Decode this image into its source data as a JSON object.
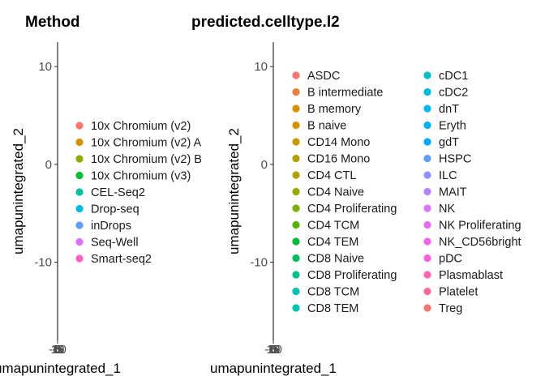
{
  "chart_data": [
    {
      "type": "scatter",
      "title": "Method",
      "xlabel": "umapunintegrated_1",
      "ylabel": "umapunintegrated_2",
      "yticks": [
        "10",
        "0",
        "-10"
      ],
      "yticks_values": [
        10,
        0,
        -10
      ],
      "xticks_overlap": [
        "-10",
        "-5",
        "0",
        "5",
        "10",
        "15"
      ],
      "ylim": [
        -18,
        12.5
      ],
      "legend_position": "right",
      "legend": [
        {
          "name": "10x Chromium (v2)",
          "color": "#F8766D"
        },
        {
          "name": "10x Chromium (v2) A",
          "color": "#D39200"
        },
        {
          "name": "10x Chromium (v2) B",
          "color": "#93AA00"
        },
        {
          "name": "10x Chromium (v3)",
          "color": "#00BA38"
        },
        {
          "name": "CEL-Seq2",
          "color": "#00C19F"
        },
        {
          "name": "Drop-seq",
          "color": "#00B9E3"
        },
        {
          "name": "inDrops",
          "color": "#619CFF"
        },
        {
          "name": "Seq-Well",
          "color": "#DB72FB"
        },
        {
          "name": "Smart-seq2",
          "color": "#FF61C3"
        }
      ]
    },
    {
      "type": "scatter",
      "title": "predicted.celltype.l2",
      "xlabel": "umapunintegrated_1",
      "ylabel": "umapunintegrated_2",
      "yticks": [
        "10",
        "0",
        "-10"
      ],
      "yticks_values": [
        10,
        0,
        -10
      ],
      "xticks_overlap": [
        "-10",
        "-5",
        "0",
        "5",
        "10",
        "15"
      ],
      "ylim": [
        -18,
        12.5
      ],
      "legend_position": "right",
      "legend_columns": 2,
      "legend": [
        {
          "name": "ASDC",
          "color": "#F8766D"
        },
        {
          "name": "B intermediate",
          "color": "#EC8239"
        },
        {
          "name": "B memory",
          "color": "#DB8E00"
        },
        {
          "name": "B naive",
          "color": "#D89000"
        },
        {
          "name": "CD14 Mono",
          "color": "#C79800"
        },
        {
          "name": "CD16 Mono",
          "color": "#B4A000"
        },
        {
          "name": "CD4 CTL",
          "color": "#AEA200"
        },
        {
          "name": "CD4 Naive",
          "color": "#97A900"
        },
        {
          "name": "CD4 Proliferating",
          "color": "#7CAE00"
        },
        {
          "name": "CD4 TCM",
          "color": "#53B400"
        },
        {
          "name": "CD4 TEM",
          "color": "#00BA38"
        },
        {
          "name": "CD8 Naive",
          "color": "#00BD5C"
        },
        {
          "name": "CD8 Proliferating",
          "color": "#00C08B"
        },
        {
          "name": "CD8 TCM",
          "color": "#00C0AF"
        },
        {
          "name": "CD8 TEM",
          "color": "#00C1B2"
        },
        {
          "name": "cDC1",
          "color": "#00BFC4"
        },
        {
          "name": "cDC2",
          "color": "#00BBD8"
        },
        {
          "name": "dnT",
          "color": "#00B6EB"
        },
        {
          "name": "Eryth",
          "color": "#00B0F6"
        },
        {
          "name": "gdT",
          "color": "#00A9FF"
        },
        {
          "name": "HSPC",
          "color": "#619CFF"
        },
        {
          "name": "ILC",
          "color": "#8F91FF"
        },
        {
          "name": "MAIT",
          "color": "#B983FF"
        },
        {
          "name": "NK",
          "color": "#D874FD"
        },
        {
          "name": "NK Proliferating",
          "color": "#E76BF3"
        },
        {
          "name": "NK_CD56bright",
          "color": "#F265E7"
        },
        {
          "name": "pDC",
          "color": "#FA62DB"
        },
        {
          "name": "Plasmablast",
          "color": "#FF64B0"
        },
        {
          "name": "Platelet",
          "color": "#FF6A98"
        },
        {
          "name": "Treg",
          "color": "#F8766D"
        }
      ]
    }
  ]
}
